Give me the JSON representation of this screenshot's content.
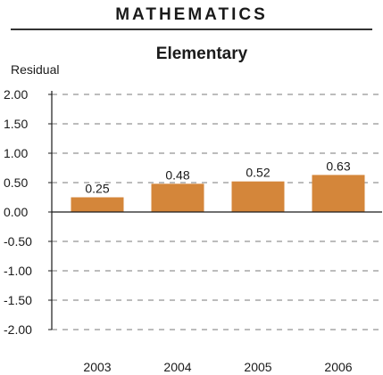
{
  "header": {
    "section_title": "MATHEMATICS"
  },
  "chart_data": {
    "type": "bar",
    "title": "Elementary",
    "xlabel": "",
    "ylabel": "Residual",
    "categories": [
      "2003",
      "2004",
      "2005",
      "2006"
    ],
    "values": [
      0.25,
      0.48,
      0.52,
      0.63
    ],
    "value_labels": [
      "0.25",
      "0.48",
      "0.52",
      "0.63"
    ],
    "y_ticks": [
      "2.00",
      "1.50",
      "1.00",
      "0.50",
      "0.00",
      "-0.50",
      "-1.00",
      "-1.50",
      "-2.00"
    ],
    "ylim": [
      -2,
      2
    ],
    "grid": true,
    "bar_color": "#D4863A"
  }
}
